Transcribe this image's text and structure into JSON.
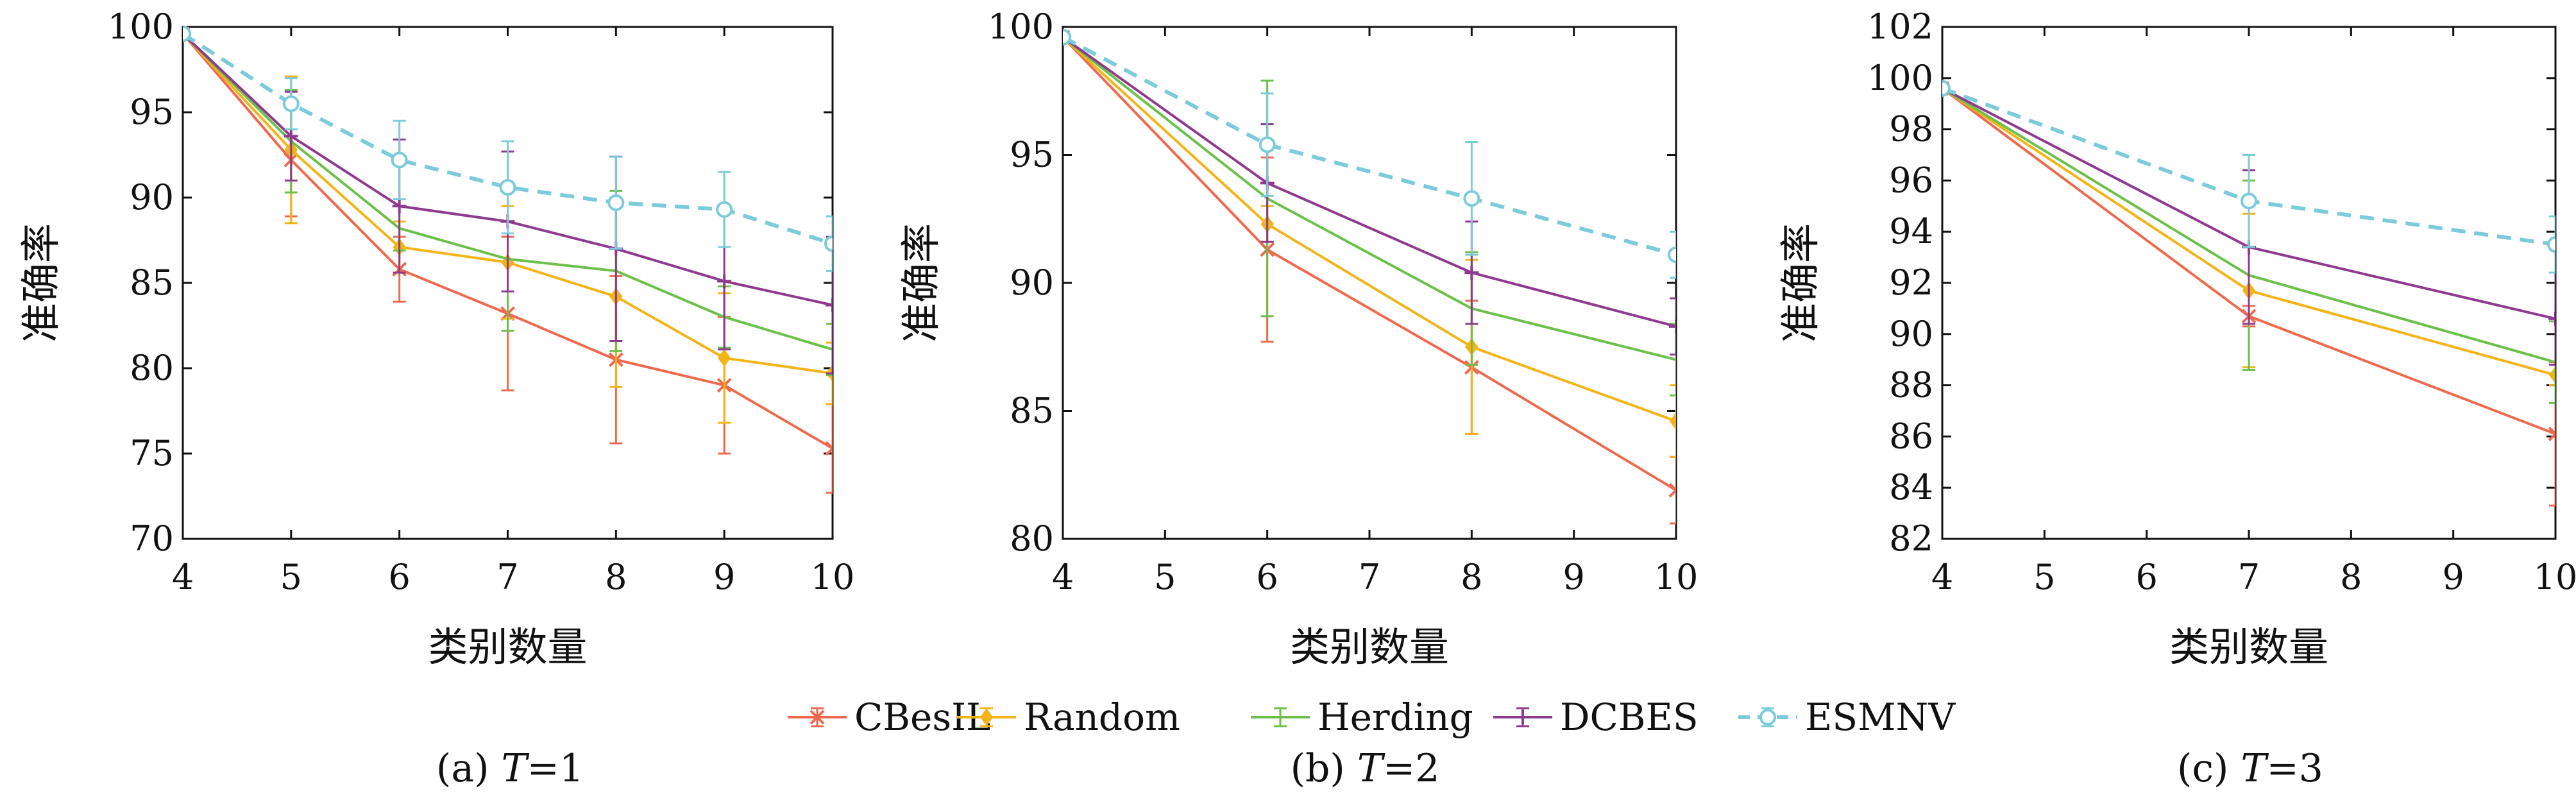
{
  "colors": {
    "CBesIL": "#ee6a4f",
    "Random": "#f3b418",
    "Herding": "#6cc04a",
    "DCBES": "#8e3a8e",
    "ESMNV": "#7ccbdb"
  },
  "legend": {
    "items": [
      {
        "label": "CBesIL",
        "color": "#ee6a4f",
        "style": "solid",
        "marker": "x"
      },
      {
        "label": "Random",
        "color": "#f3b418",
        "style": "solid",
        "marker": "diamond"
      },
      {
        "label": "Herding",
        "color": "#6cc04a",
        "style": "solid",
        "marker": "none"
      },
      {
        "label": "DCBES",
        "color": "#8e3a8e",
        "style": "solid",
        "marker": "plus"
      },
      {
        "label": "ESMNV",
        "color": "#7ccbdb",
        "style": "dashed",
        "marker": "circle"
      }
    ]
  },
  "chart_data": [
    {
      "type": "line",
      "caption": "(a) T=1",
      "caption_prefix": "(a) ",
      "caption_var": "T",
      "caption_suffix": "=1",
      "xlabel": "类别数量",
      "ylabel": "准确率",
      "xlim": [
        4,
        10
      ],
      "ylim": [
        70,
        100
      ],
      "xticks": [
        4,
        5,
        6,
        7,
        8,
        9,
        10
      ],
      "yticks": [
        70,
        75,
        80,
        85,
        90,
        95,
        100
      ],
      "x": [
        4,
        5,
        6,
        7,
        8,
        9,
        10
      ],
      "series": [
        {
          "name": "CBesIL",
          "values": [
            99.6,
            92.2,
            85.8,
            83.2,
            80.5,
            79.0,
            75.3
          ],
          "err": [
            0.2,
            3.3,
            1.9,
            4.5,
            4.9,
            4.0,
            2.6
          ]
        },
        {
          "name": "Random",
          "values": [
            99.6,
            92.8,
            87.1,
            86.2,
            84.2,
            80.6,
            79.7
          ],
          "err": [
            0.2,
            4.3,
            1.5,
            3.3,
            5.3,
            3.8,
            1.8
          ]
        },
        {
          "name": "Herding",
          "values": [
            99.6,
            93.3,
            88.2,
            86.4,
            85.7,
            83.0,
            81.1
          ],
          "err": [
            0.2,
            3.0,
            1.3,
            4.2,
            4.7,
            1.8,
            1.5
          ]
        },
        {
          "name": "DCBES",
          "values": [
            99.6,
            93.6,
            89.5,
            88.6,
            87.0,
            85.1,
            83.7
          ],
          "err": [
            0.2,
            2.6,
            3.9,
            4.1,
            5.4,
            4.0,
            4.0
          ]
        },
        {
          "name": "ESMNV",
          "values": [
            99.6,
            95.5,
            92.2,
            90.6,
            89.7,
            89.3,
            87.3
          ],
          "err": [
            0.2,
            1.5,
            2.3,
            2.7,
            2.7,
            2.2,
            1.6
          ]
        }
      ]
    },
    {
      "type": "line",
      "caption": "(b) T=2",
      "caption_prefix": "(b) ",
      "caption_var": "T",
      "caption_suffix": "=2",
      "xlabel": "类别数量",
      "ylabel": "准确率",
      "xlim": [
        4,
        10
      ],
      "ylim": [
        80,
        100
      ],
      "xticks": [
        4,
        5,
        6,
        7,
        8,
        9,
        10
      ],
      "yticks": [
        80,
        85,
        90,
        95,
        100
      ],
      "x": [
        4,
        6,
        8,
        10
      ],
      "series": [
        {
          "name": "CBesIL",
          "values": [
            99.6,
            91.3,
            86.7,
            81.9
          ],
          "err": [
            0.2,
            3.6,
            2.6,
            1.3
          ]
        },
        {
          "name": "Random",
          "values": [
            99.6,
            92.3,
            87.5,
            84.6
          ],
          "err": [
            0.2,
            0.7,
            3.4,
            1.4
          ]
        },
        {
          "name": "Herding",
          "values": [
            99.6,
            93.3,
            89.0,
            87.0
          ],
          "err": [
            0.2,
            4.6,
            2.2,
            1.4
          ]
        },
        {
          "name": "DCBES",
          "values": [
            99.6,
            93.9,
            90.4,
            88.3
          ],
          "err": [
            0.2,
            2.3,
            2.0,
            1.1
          ]
        },
        {
          "name": "ESMNV",
          "values": [
            99.6,
            95.4,
            93.3,
            91.1
          ],
          "err": [
            0.2,
            2.0,
            2.2,
            0.9
          ]
        }
      ]
    },
    {
      "type": "line",
      "caption": "(c) T=3",
      "caption_prefix": "(c) ",
      "caption_var": "T",
      "caption_suffix": "=3",
      "xlabel": "类别数量",
      "ylabel": "准确率",
      "xlim": [
        4,
        10
      ],
      "ylim": [
        82,
        102
      ],
      "xticks": [
        4,
        5,
        6,
        7,
        8,
        9,
        10
      ],
      "yticks": [
        82,
        84,
        86,
        88,
        90,
        92,
        94,
        96,
        98,
        100,
        102
      ],
      "x": [
        4,
        7,
        10
      ],
      "series": [
        {
          "name": "CBesIL",
          "values": [
            99.6,
            90.7,
            86.1
          ],
          "err": [
            0.2,
            0.4,
            2.8
          ]
        },
        {
          "name": "Random",
          "values": [
            99.6,
            91.7,
            88.4
          ],
          "err": [
            0.2,
            3.0,
            0.4
          ]
        },
        {
          "name": "Herding",
          "values": [
            99.6,
            92.3,
            88.9
          ],
          "err": [
            0.2,
            3.7,
            1.6
          ]
        },
        {
          "name": "DCBES",
          "values": [
            99.6,
            93.4,
            90.6
          ],
          "err": [
            0.2,
            3.0,
            1.8
          ]
        },
        {
          "name": "ESMNV",
          "values": [
            99.6,
            95.2,
            93.5
          ],
          "err": [
            0.2,
            1.8,
            1.1
          ]
        }
      ]
    }
  ]
}
